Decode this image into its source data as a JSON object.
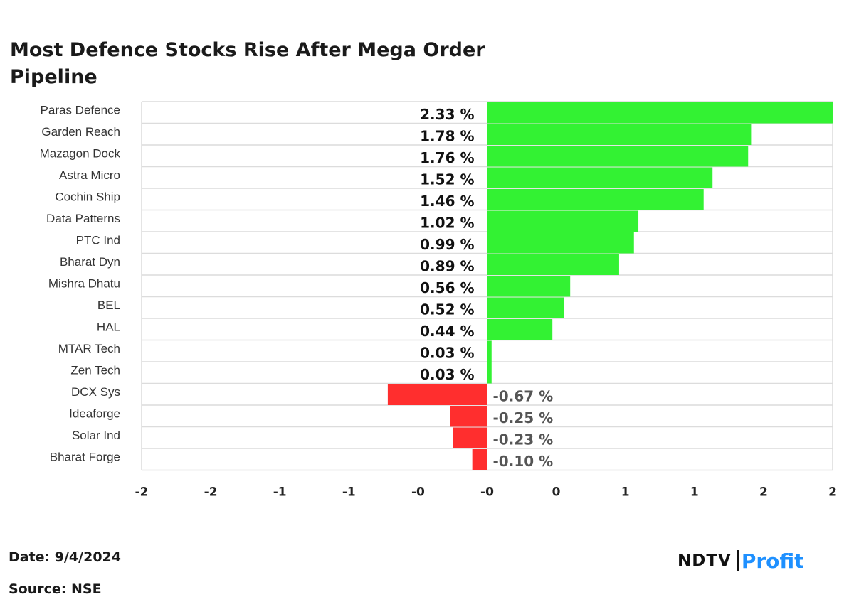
{
  "header": {
    "title": "Most Defence Stocks Rise After Mega Order Pipeline"
  },
  "chart_data": {
    "type": "bar",
    "orientation": "horizontal",
    "categories": [
      "Paras Defence",
      "Garden Reach",
      "Mazagon Dock",
      "Astra Micro",
      "Cochin Ship",
      "Data Patterns",
      "PTC Ind",
      "Bharat Dyn",
      "Mishra Dhatu",
      "BEL",
      "HAL",
      "MTAR Tech",
      "Zen Tech",
      "DCX Sys",
      "Ideaforge",
      "Solar Ind",
      "Bharat Forge"
    ],
    "values": [
      2.33,
      1.78,
      1.76,
      1.52,
      1.46,
      1.02,
      0.99,
      0.89,
      0.56,
      0.52,
      0.44,
      0.03,
      0.03,
      -0.67,
      -0.25,
      -0.23,
      -0.1
    ],
    "data_labels": [
      "2.33 %",
      "1.78 %",
      "1.76 %",
      "1.52 %",
      "1.46 %",
      "1.02 %",
      "0.99 %",
      "0.89 %",
      "0.56 %",
      "0.52 %",
      "0.44 %",
      "0.03 %",
      "0.03 %",
      "-0.67 %",
      "-0.25 %",
      "-0.23 %",
      "-0.10 %"
    ],
    "xlim": [
      -2.33,
      2.33
    ],
    "x_tick_labels": [
      "-2",
      "-2",
      "-1",
      "-1",
      "-0",
      "-0",
      "0",
      "1",
      "1",
      "2",
      "2"
    ],
    "grid": "horizontal",
    "colors": {
      "positive": "#33f233",
      "negative": "#ff2e2e",
      "grid": "#dcdcdc",
      "positive_label": "#111111",
      "negative_label": "#555555"
    }
  },
  "footer": {
    "date_label": "Date: 9/4/2024",
    "source_label": "Source: NSE",
    "logo_ndtv": "NDTV",
    "logo_profit": "Profit"
  }
}
